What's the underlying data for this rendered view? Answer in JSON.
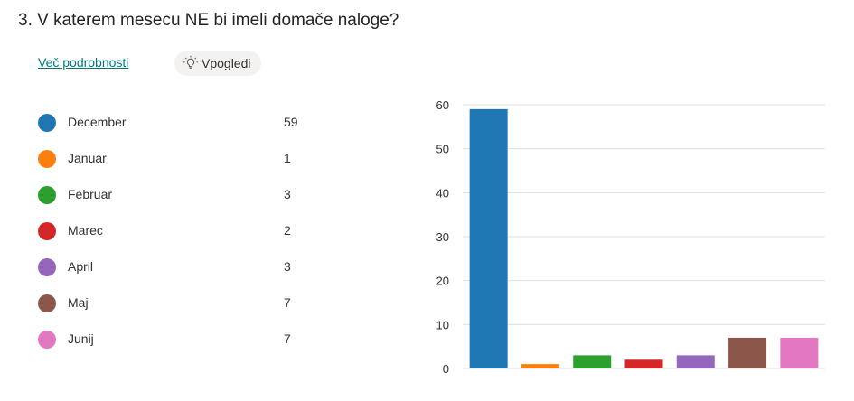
{
  "question": {
    "title": "3.  V katerem mesecu NE bi imeli domače naloge?"
  },
  "links": {
    "more_details": "Več podrobnosti",
    "insights": "Vpogledi"
  },
  "icons": {
    "insights": "lightbulb-icon"
  },
  "chart_data": {
    "type": "bar",
    "categories": [
      "December",
      "Januar",
      "Februar",
      "Marec",
      "April",
      "Maj",
      "Junij"
    ],
    "values": [
      59,
      1,
      3,
      2,
      3,
      7,
      7
    ],
    "colors": [
      "#1f77b4",
      "#ff7f0e",
      "#2ca02c",
      "#d62728",
      "#9467bd",
      "#8c564b",
      "#e377c2"
    ],
    "ylim": [
      0,
      60
    ],
    "yticks": [
      0,
      10,
      20,
      30,
      40,
      50,
      60
    ],
    "grid": true,
    "legend_placement": "left"
  }
}
